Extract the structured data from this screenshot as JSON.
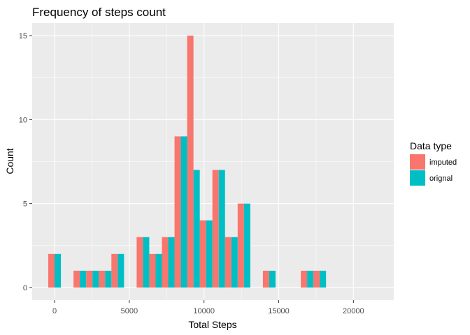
{
  "chart_data": {
    "type": "bar",
    "title": "Frequency of steps count",
    "xlabel": "Total Steps",
    "ylabel": "Count",
    "xlim": [
      -1500,
      22700
    ],
    "ylim": [
      -0.75,
      15.75
    ],
    "x_ticks": [
      0,
      5000,
      10000,
      15000,
      20000
    ],
    "x_tick_labels": [
      "0",
      "5000",
      "10000",
      "15000",
      "20000"
    ],
    "y_ticks": [
      0,
      5,
      10,
      15
    ],
    "y_tick_labels": [
      "0",
      "5",
      "10",
      "15"
    ],
    "bin_width": 845,
    "grid": true,
    "legend": {
      "title": "Data type",
      "placement": "right"
    },
    "x": [
      0,
      845,
      1690,
      2535,
      3380,
      4225,
      5070,
      5915,
      6760,
      7605,
      8450,
      9295,
      10140,
      10985,
      11830,
      12675,
      13520,
      14365,
      15210,
      16055,
      16900,
      17745,
      18590,
      19435,
      20280,
      21125
    ],
    "series": [
      {
        "name": "imputed",
        "color": "#F8766D",
        "values": [
          2,
          0,
          1,
          1,
          1,
          2,
          0,
          3,
          2,
          3,
          9,
          15,
          4,
          7,
          3,
          5,
          0,
          1,
          0,
          0,
          1,
          1,
          0,
          0,
          0,
          0
        ]
      },
      {
        "name": "orignal",
        "color": "#00BFC4",
        "values": [
          2,
          0,
          1,
          1,
          1,
          2,
          0,
          3,
          2,
          3,
          9,
          7,
          4,
          7,
          3,
          5,
          0,
          1,
          0,
          0,
          1,
          1,
          0,
          0,
          0,
          0
        ]
      }
    ]
  }
}
